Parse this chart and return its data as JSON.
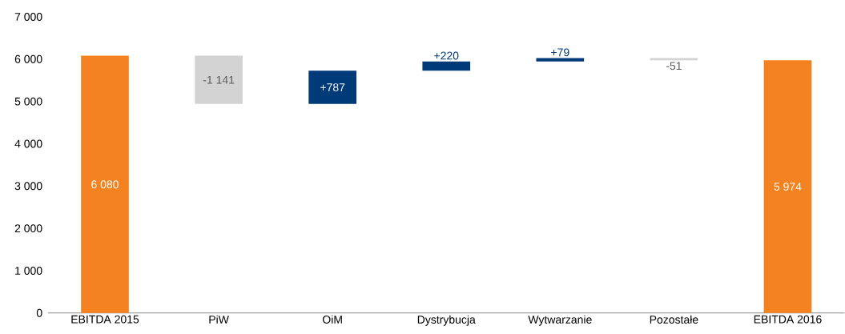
{
  "chart_data": {
    "type": "bar",
    "categories": [
      "EBITDA 2015",
      "PiW",
      "OiM",
      "Dystrybucja",
      "Wytwarzanie",
      "Pozostałe",
      "EBITDA 2016"
    ],
    "base": [
      0,
      6080,
      4939,
      5726,
      5946,
      6025,
      0
    ],
    "values": [
      6080,
      -1141,
      787,
      220,
      79,
      -51,
      5974
    ],
    "colors": [
      "#f58220",
      "#d3d3d3",
      "#003a78",
      "#003a78",
      "#003a78",
      "#d3d3d3",
      "#f58220"
    ],
    "value_labels": [
      "6 080",
      "-1 141",
      "+787",
      "+220",
      "+79",
      "-51",
      "5 974"
    ],
    "ylim": [
      0,
      7000
    ],
    "yticks": [
      {
        "value": 0,
        "label": "0"
      },
      {
        "value": 1000,
        "label": "1 000"
      },
      {
        "value": 2000,
        "label": "2 000"
      },
      {
        "value": 3000,
        "label": "3 000"
      },
      {
        "value": 4000,
        "label": "4 000"
      },
      {
        "value": 5000,
        "label": "5 000"
      },
      {
        "value": 6000,
        "label": "6 000"
      },
      {
        "value": 7000,
        "label": "7 000"
      }
    ]
  }
}
